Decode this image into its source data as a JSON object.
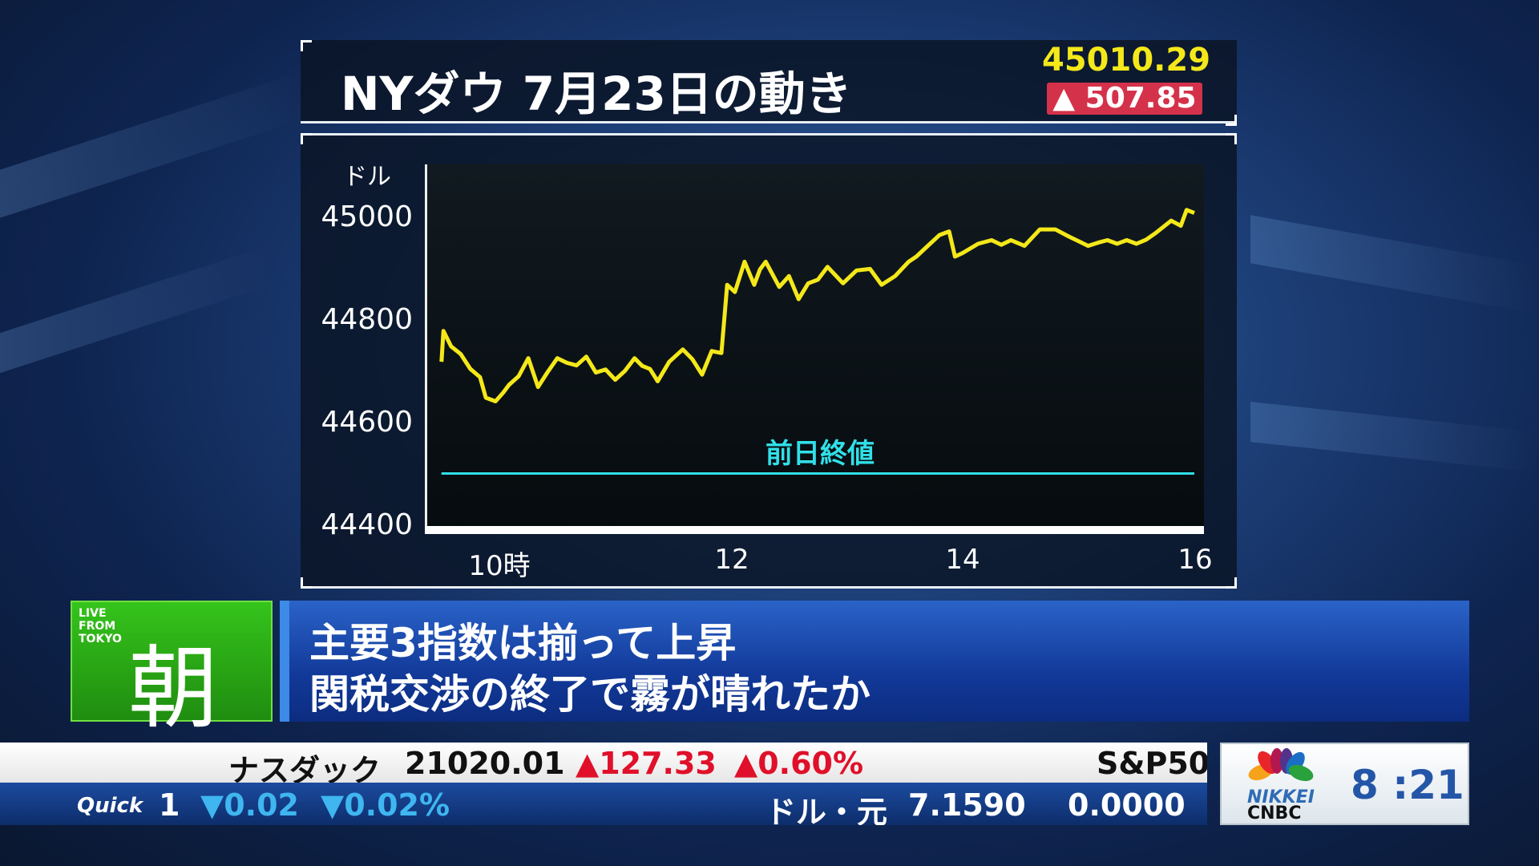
{
  "panel": {
    "title": "NYダウ 7月23日の動き",
    "price": "45010.29",
    "change": "▲ 507.85",
    "change_color": "#d4324a",
    "price_color": "#f4e81a"
  },
  "chart_data": {
    "type": "line",
    "title": "NYダウ 7月23日の動き",
    "ylabel": "ドル",
    "ylim": [
      44400,
      45080
    ],
    "yticks": [
      "45000",
      "44800",
      "44600",
      "44400"
    ],
    "xticks": [
      "10時",
      "12",
      "14",
      "16"
    ],
    "xrange": [
      "09:30",
      "16:00"
    ],
    "line_color": "#f4e81a",
    "reference": {
      "label": "前日終値",
      "value": 44502.44,
      "color": "#31e0e8"
    },
    "series": [
      {
        "x": [
          "09:30",
          "09:31",
          "09:35",
          "09:40",
          "09:45",
          "09:50",
          "09:53",
          "09:58",
          "10:02",
          "10:05",
          "10:10",
          "10:15",
          "10:20",
          "10:25",
          "10:30",
          "10:35",
          "10:40",
          "10:45",
          "10:50",
          "10:55",
          "11:00",
          "11:05",
          "11:10",
          "11:14",
          "11:18",
          "11:22",
          "11:28",
          "11:35",
          "11:40",
          "11:45",
          "11:50",
          "11:55",
          "11:58",
          "12:02",
          "12:07",
          "12:12",
          "12:15",
          "12:18",
          "12:25",
          "12:30",
          "12:35",
          "12:40",
          "12:45",
          "12:50",
          "12:55",
          "12:58",
          "13:05",
          "13:12",
          "13:18",
          "13:25",
          "13:32",
          "13:36",
          "13:40",
          "13:48",
          "13:53",
          "13:56",
          "14:00",
          "14:08",
          "14:15",
          "14:20",
          "14:25",
          "14:32",
          "14:40",
          "14:48",
          "14:55",
          "15:00",
          "15:05",
          "15:10",
          "15:15",
          "15:20",
          "15:25",
          "15:30",
          "15:35",
          "15:40",
          "15:48",
          "15:53",
          "15:56",
          "16:00"
        ],
        "values": [
          44720,
          44780,
          44750,
          44735,
          44706,
          44690,
          44650,
          44643,
          44660,
          44675,
          44692,
          44727,
          44671,
          44700,
          44727,
          44718,
          44713,
          44730,
          44699,
          44705,
          44685,
          44702,
          44727,
          44712,
          44706,
          44682,
          44720,
          44744,
          44725,
          44695,
          44741,
          44737,
          44870,
          44856,
          44915,
          44870,
          44900,
          44915,
          44866,
          44887,
          44842,
          44873,
          44880,
          44905,
          44885,
          44873,
          44898,
          44901,
          44870,
          44887,
          44915,
          44925,
          44939,
          44967,
          44974,
          44925,
          44932,
          44950,
          44957,
          44948,
          44957,
          44946,
          44978,
          44978,
          44964,
          44955,
          44946,
          44952,
          44957,
          44950,
          44957,
          44950,
          44958,
          44971,
          44995,
          44985,
          45016,
          45010
        ]
      }
    ]
  },
  "banner": {
    "live": "LIVE FROM TOKYO",
    "program": "朝",
    "headline1": "主要3指数は揃って上昇",
    "headline2": "関税交渉の終了で霧が晴れたか"
  },
  "ticker": {
    "top": [
      {
        "label": "ナスダック"
      },
      {
        "value": "21020.01"
      },
      {
        "change": "▲127.33"
      },
      {
        "pct": "▲0.60%"
      },
      {
        "next": "S&P50"
      }
    ],
    "bottom": {
      "source": "Quick",
      "item": "1",
      "change": "▼0.02",
      "pct": "▼0.02%",
      "fx_label": "ドル・元",
      "fx_value": "7.1590",
      "fx_change": "0.0000"
    }
  },
  "logo": {
    "line1": "NIKKEI",
    "line2": "CNBC"
  },
  "clock": "8 :21"
}
